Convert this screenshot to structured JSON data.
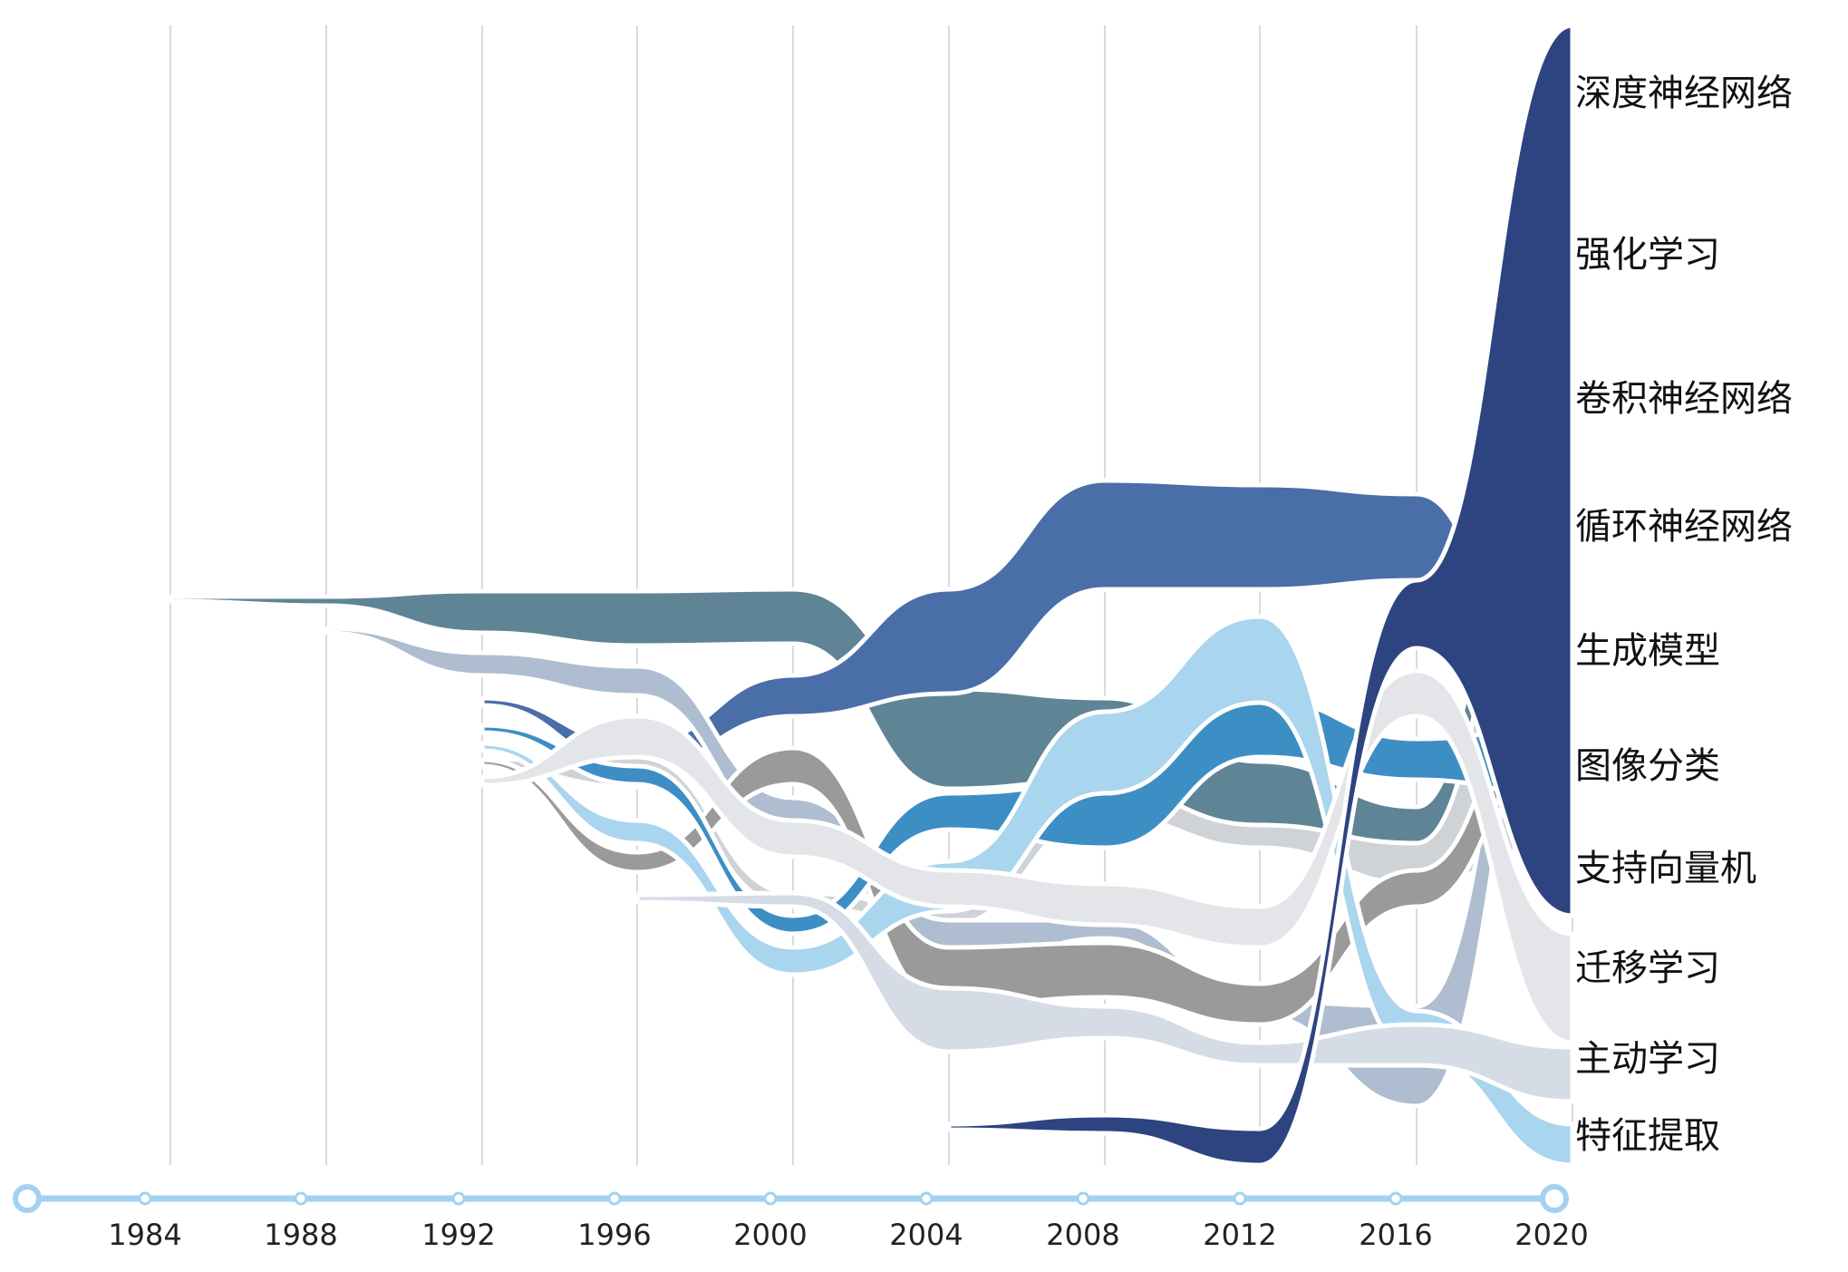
{
  "chart_data": {
    "type": "area",
    "x": [
      1984,
      1988,
      1992,
      1996,
      2000,
      2004,
      2008,
      2012,
      2016,
      2020
    ],
    "series": [
      {
        "name": "深度神经网络",
        "color": "#2e4480",
        "start": 2004,
        "values": [
          0,
          0,
          0,
          0,
          0,
          2,
          20,
          35,
          85,
          260
        ],
        "center": [
          0,
          0,
          0,
          0,
          0,
          0,
          1240,
          1260,
          630,
          160
        ]
      },
      {
        "name": "强化学习",
        "color": "#5f8496",
        "start": 1984,
        "values": [
          2,
          18,
          40,
          52,
          58,
          110,
          140,
          110,
          90,
          300
        ],
        "center": [
          0,
          0,
          0,
          0,
          0,
          0,
          0,
          0,
          0,
          0
        ]
      },
      {
        "name": "卷积神经网络",
        "color": "#cfd2d6",
        "start": 1992,
        "values": [
          0,
          0,
          6,
          10,
          14,
          22,
          30,
          40,
          50,
          260
        ],
        "center": [
          0,
          0,
          0,
          0,
          0,
          0,
          0,
          0,
          0,
          0
        ]
      },
      {
        "name": "循环神经网络",
        "color": "#aebdcf",
        "start": 1988,
        "values": [
          0,
          3,
          25,
          32,
          25,
          60,
          40,
          30,
          40,
          150
        ],
        "center": [
          0,
          0,
          0,
          0,
          0,
          0,
          0,
          0,
          0,
          0
        ]
      },
      {
        "name": "生成模型",
        "color": "#9a9a9a",
        "start": 1992,
        "values": [
          0,
          0,
          6,
          25,
          38,
          55,
          60,
          45,
          60,
          130
        ],
        "center": [
          0,
          0,
          0,
          0,
          0,
          0,
          0,
          0,
          0,
          0
        ]
      },
      {
        "name": "图像分类",
        "color": "#3d8ec4",
        "start": 1992,
        "values": [
          0,
          0,
          6,
          14,
          18,
          55,
          70,
          65,
          45,
          110
        ],
        "center": [
          0,
          0,
          0,
          0,
          0,
          0,
          0,
          0,
          0,
          0
        ]
      },
      {
        "name": "支持向量机",
        "color": "#4a6ea8",
        "start": 1992,
        "values": [
          0,
          0,
          6,
          18,
          60,
          110,
          160,
          140,
          100,
          75
        ],
        "center": [
          0,
          0,
          0,
          0,
          0,
          0,
          0,
          0,
          0,
          0
        ]
      },
      {
        "name": "迁移学习",
        "color": "#e3e5e9",
        "start": 1992,
        "values": [
          0,
          0,
          10,
          40,
          40,
          45,
          50,
          40,
          40,
          140
        ],
        "center": [
          0,
          0,
          0,
          0,
          0,
          0,
          0,
          0,
          0,
          0
        ]
      },
      {
        "name": "主动学习",
        "color": "#d6dce6",
        "start": 1996,
        "values": [
          0,
          0,
          0,
          8,
          15,
          55,
          70,
          70,
          60,
          80
        ],
        "center": [
          0,
          0,
          0,
          0,
          0,
          0,
          0,
          0,
          0,
          0
        ]
      },
      {
        "name": "特征提取",
        "color": "#a9d5ee",
        "start": 1992,
        "values": [
          0,
          0,
          6,
          22,
          30,
          60,
          85,
          80,
          40,
          60
        ],
        "center": [
          0,
          0,
          0,
          0,
          0,
          0,
          0,
          0,
          0,
          0
        ]
      }
    ],
    "timeline_color": "#a3d2f0",
    "grid": true,
    "legend": "right"
  }
}
